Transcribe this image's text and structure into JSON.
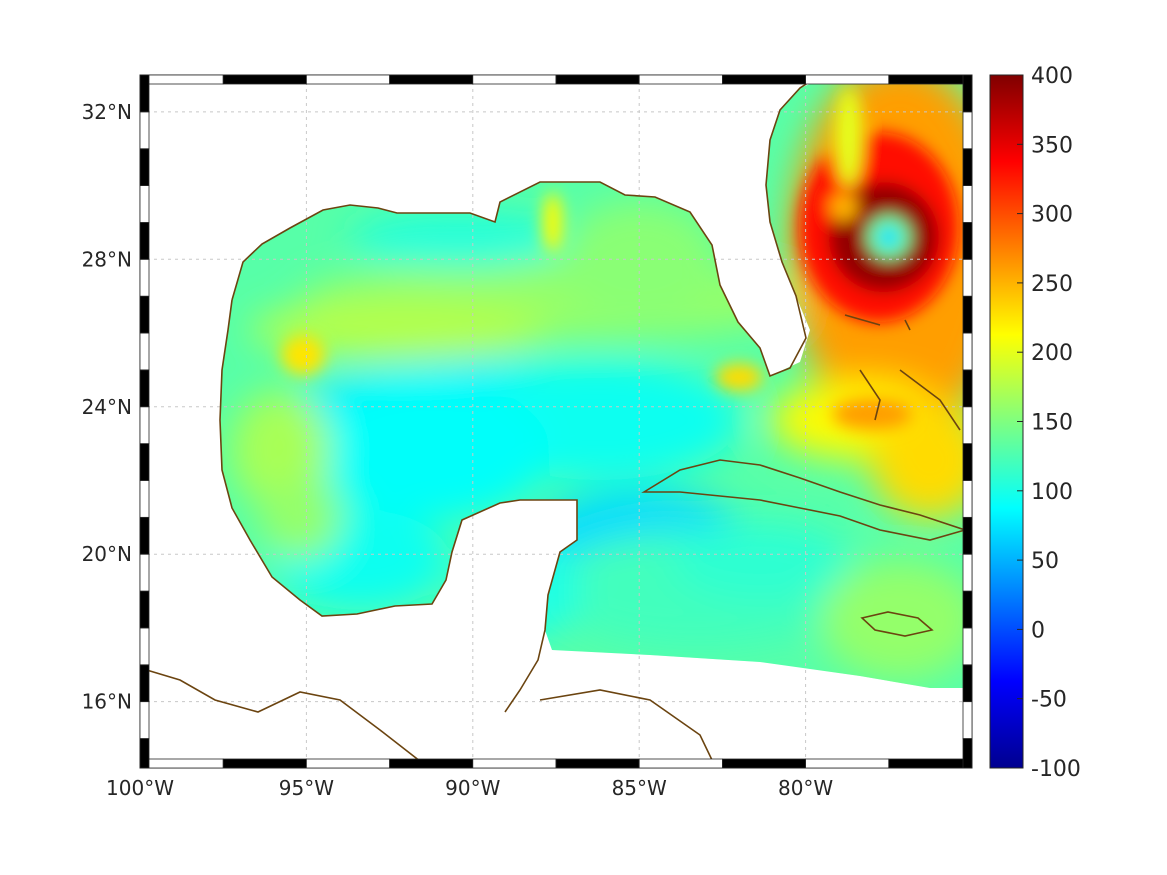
{
  "map": {
    "title": "",
    "field_description_visible": "",
    "projection": "equirectangular",
    "extent": {
      "lon_min": -100,
      "lon_max": -75,
      "lat_min": 14.2,
      "lat_max": 33
    },
    "grid": true,
    "frame_style": "alternating-black-white",
    "colormap": "jet",
    "coast_color": "#6b4410",
    "land_color": "#ffffff"
  },
  "axes": {
    "x_ticks": [
      {
        "value": -100,
        "label": "100°W"
      },
      {
        "value": -95,
        "label": "95°W"
      },
      {
        "value": -90,
        "label": "90°W"
      },
      {
        "value": -85,
        "label": "85°W"
      },
      {
        "value": -80,
        "label": "80°W"
      }
    ],
    "y_ticks": [
      {
        "value": 32,
        "label": "32°N"
      },
      {
        "value": 28,
        "label": "28°N"
      },
      {
        "value": 24,
        "label": "24°N"
      },
      {
        "value": 20,
        "label": "20°N"
      },
      {
        "value": 16,
        "label": "16°N"
      }
    ]
  },
  "colorbar": {
    "min": -100,
    "max": 400,
    "ticks": [
      {
        "value": 400,
        "label": "400"
      },
      {
        "value": 350,
        "label": "350"
      },
      {
        "value": 300,
        "label": "300"
      },
      {
        "value": 250,
        "label": "250"
      },
      {
        "value": 200,
        "label": "200"
      },
      {
        "value": 150,
        "label": "150"
      },
      {
        "value": 100,
        "label": "100"
      },
      {
        "value": 50,
        "label": "50"
      },
      {
        "value": 0,
        "label": "0"
      },
      {
        "value": -50,
        "label": "-50"
      },
      {
        "value": -100,
        "label": "-100"
      }
    ]
  },
  "features": {
    "hurricane_eye": {
      "lon": -77.5,
      "lat": 28.6,
      "eye_value": 70,
      "ring_value": 390
    },
    "warm_eddies": [
      {
        "name": "loop-current-tongue",
        "lon": -87.6,
        "lat": 29.0,
        "value": 215
      },
      {
        "name": "western-gulf-eddy",
        "lon": -95.1,
        "lat": 25.4,
        "value": 225
      },
      {
        "name": "florida-straits-warm",
        "lon": -82.0,
        "lat": 24.8,
        "value": 230
      },
      {
        "name": "bahamas-warm",
        "lon": -78.0,
        "lat": 23.8,
        "value": 260
      }
    ]
  }
}
